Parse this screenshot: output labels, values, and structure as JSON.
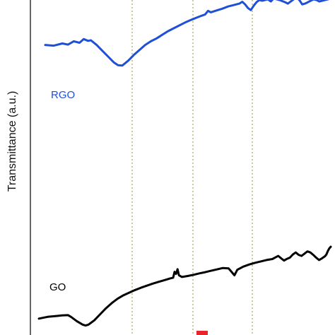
{
  "chart_data": {
    "type": "line",
    "title": "",
    "xlabel": "",
    "ylabel": "Transmittance (a.u.)",
    "grid": false,
    "reference_lines": 3,
    "series": [
      {
        "name": "RGO",
        "color": "#1f4fd6",
        "points": [
          [
            0.0,
            0.69
          ],
          [
            0.03,
            0.685
          ],
          [
            0.06,
            0.7
          ],
          [
            0.08,
            0.692
          ],
          [
            0.1,
            0.715
          ],
          [
            0.12,
            0.705
          ],
          [
            0.135,
            0.73
          ],
          [
            0.15,
            0.718
          ],
          [
            0.16,
            0.722
          ],
          [
            0.18,
            0.69
          ],
          [
            0.2,
            0.65
          ],
          [
            0.22,
            0.61
          ],
          [
            0.24,
            0.57
          ],
          [
            0.255,
            0.55
          ],
          [
            0.27,
            0.548
          ],
          [
            0.29,
            0.58
          ],
          [
            0.31,
            0.62
          ],
          [
            0.33,
            0.655
          ],
          [
            0.35,
            0.69
          ],
          [
            0.37,
            0.715
          ],
          [
            0.39,
            0.735
          ],
          [
            0.41,
            0.76
          ],
          [
            0.43,
            0.785
          ],
          [
            0.45,
            0.805
          ],
          [
            0.47,
            0.825
          ],
          [
            0.49,
            0.845
          ],
          [
            0.51,
            0.862
          ],
          [
            0.53,
            0.878
          ],
          [
            0.55,
            0.893
          ],
          [
            0.56,
            0.9
          ],
          [
            0.57,
            0.925
          ],
          [
            0.58,
            0.915
          ],
          [
            0.6,
            0.928
          ],
          [
            0.62,
            0.94
          ],
          [
            0.64,
            0.955
          ],
          [
            0.66,
            0.965
          ],
          [
            0.68,
            0.975
          ],
          [
            0.69,
            0.988
          ],
          [
            0.7,
            0.97
          ],
          [
            0.71,
            0.945
          ],
          [
            0.72,
            0.93
          ],
          [
            0.73,
            0.96
          ],
          [
            0.74,
            0.985
          ],
          [
            0.75,
            1.0
          ],
          [
            0.76,
            0.995
          ],
          [
            0.78,
            1.005
          ],
          [
            0.79,
            0.99
          ],
          [
            0.8,
            1.01
          ],
          [
            0.82,
            1.0
          ],
          [
            0.84,
            0.985
          ],
          [
            0.85,
            0.975
          ],
          [
            0.86,
            0.99
          ],
          [
            0.87,
            1.005
          ],
          [
            0.88,
            1.015
          ],
          [
            0.89,
            1.0
          ],
          [
            0.9,
            0.97
          ],
          [
            0.91,
            0.975
          ],
          [
            0.92,
            0.985
          ],
          [
            0.93,
            0.995
          ],
          [
            0.94,
            1.005
          ],
          [
            0.95,
            1.0
          ],
          [
            0.96,
            0.99
          ],
          [
            0.97,
            0.995
          ],
          [
            0.98,
            1.0
          ],
          [
            0.99,
            1.005
          ],
          [
            1.0,
            1.01
          ]
        ]
      },
      {
        "name": "GO",
        "color": "#000000",
        "points": [
          [
            0.0,
            0.05
          ],
          [
            0.03,
            0.06
          ],
          [
            0.06,
            0.065
          ],
          [
            0.08,
            0.068
          ],
          [
            0.1,
            0.07
          ],
          [
            0.11,
            0.06
          ],
          [
            0.13,
            0.035
          ],
          [
            0.15,
            0.015
          ],
          [
            0.16,
            0.01
          ],
          [
            0.17,
            0.015
          ],
          [
            0.19,
            0.04
          ],
          [
            0.21,
            0.075
          ],
          [
            0.23,
            0.11
          ],
          [
            0.25,
            0.14
          ],
          [
            0.27,
            0.165
          ],
          [
            0.29,
            0.185
          ],
          [
            0.31,
            0.2
          ],
          [
            0.33,
            0.215
          ],
          [
            0.35,
            0.228
          ],
          [
            0.37,
            0.24
          ],
          [
            0.39,
            0.252
          ],
          [
            0.41,
            0.262
          ],
          [
            0.43,
            0.272
          ],
          [
            0.45,
            0.282
          ],
          [
            0.46,
            0.286
          ],
          [
            0.465,
            0.32
          ],
          [
            0.47,
            0.308
          ],
          [
            0.475,
            0.335
          ],
          [
            0.48,
            0.3
          ],
          [
            0.49,
            0.29
          ],
          [
            0.51,
            0.296
          ],
          [
            0.53,
            0.303
          ],
          [
            0.55,
            0.311
          ],
          [
            0.57,
            0.318
          ],
          [
            0.59,
            0.326
          ],
          [
            0.61,
            0.334
          ],
          [
            0.63,
            0.342
          ],
          [
            0.65,
            0.34
          ],
          [
            0.66,
            0.32
          ],
          [
            0.67,
            0.3
          ],
          [
            0.68,
            0.332
          ],
          [
            0.7,
            0.35
          ],
          [
            0.72,
            0.362
          ],
          [
            0.74,
            0.372
          ],
          [
            0.76,
            0.38
          ],
          [
            0.78,
            0.388
          ],
          [
            0.8,
            0.394
          ],
          [
            0.81,
            0.403
          ],
          [
            0.82,
            0.412
          ],
          [
            0.83,
            0.398
          ],
          [
            0.84,
            0.385
          ],
          [
            0.85,
            0.395
          ],
          [
            0.86,
            0.402
          ],
          [
            0.87,
            0.42
          ],
          [
            0.88,
            0.432
          ],
          [
            0.89,
            0.418
          ],
          [
            0.9,
            0.412
          ],
          [
            0.91,
            0.425
          ],
          [
            0.92,
            0.438
          ],
          [
            0.93,
            0.432
          ],
          [
            0.94,
            0.418
          ],
          [
            0.95,
            0.402
          ],
          [
            0.96,
            0.388
          ],
          [
            0.97,
            0.398
          ],
          [
            0.98,
            0.41
          ],
          [
            0.985,
            0.42
          ],
          [
            0.99,
            0.44
          ],
          [
            0.995,
            0.455
          ],
          [
            1.0,
            0.465
          ]
        ]
      }
    ]
  }
}
